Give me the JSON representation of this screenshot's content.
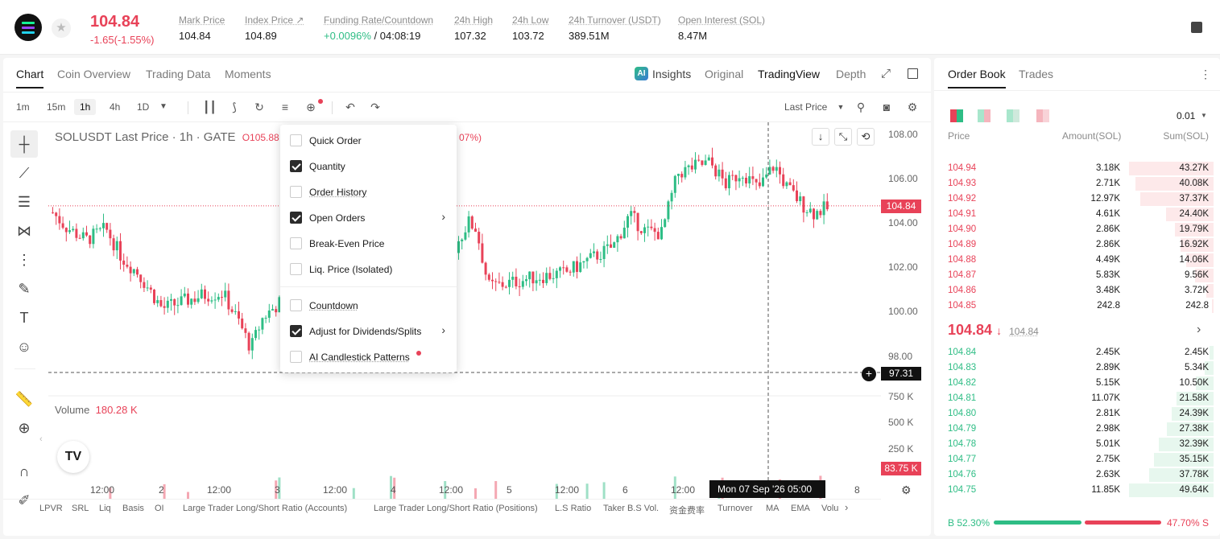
{
  "ticker": {
    "last_price": "104.84",
    "change": "-1.65(-1.55%)",
    "stats": [
      {
        "label": "Mark Price",
        "value": "104.84"
      },
      {
        "label": "Index Price ↗",
        "value": "104.89"
      },
      {
        "label": "Funding Rate/Countdown",
        "value_up": "+0.0096%",
        "value": "/ 04:08:19"
      },
      {
        "label": "24h High",
        "value": "107.32"
      },
      {
        "label": "24h Low",
        "value": "103.72"
      },
      {
        "label": "24h Turnover (USDT)",
        "value": "389.51M"
      },
      {
        "label": "Open Interest (SOL)",
        "value": "8.47M"
      }
    ]
  },
  "chart_tabs": [
    "Chart",
    "Coin Overview",
    "Trading Data",
    "Moments"
  ],
  "view_tabs": {
    "insights": "Insights",
    "original": "Original",
    "tradingview": "TradingView",
    "depth": "Depth"
  },
  "timeframes": [
    "1m",
    "15m",
    "1h",
    "4h",
    "1D"
  ],
  "price_type": "Last Price",
  "legend": {
    "symbol": "SOLUSDT Last Price · 1h · GATE",
    "open": "O105.88",
    "pct": "07%)"
  },
  "y_ticks": [
    "108.00",
    "106.00",
    "104.00",
    "102.00",
    "100.00",
    "98.00"
  ],
  "vol_ticks": [
    "750 K",
    "500 K",
    "250 K"
  ],
  "price_label": "104.84",
  "cursor_price": "97.31",
  "vol_label": "83.75 K",
  "volume": {
    "label": "Volume",
    "value": "180.28 K"
  },
  "x_ticks": [
    "12:00",
    "2",
    "12:00",
    "3",
    "12:00",
    "4",
    "12:00",
    "5",
    "12:00",
    "6",
    "12:00",
    "8"
  ],
  "x_tooltip": "Mon 07 Sep '26   05:00",
  "indicators": [
    "LPVR",
    "SRL",
    "Liq",
    "Basis",
    "OI",
    "Large Trader Long/Short Ratio (Accounts)",
    "Large Trader Long/Short Ratio (Positions)",
    "L.S Ratio",
    "Taker B.S Vol.",
    "资金费率",
    "Turnover",
    "MA",
    "EMA",
    "Volu"
  ],
  "menu": [
    {
      "label": "Quick Order",
      "checked": false
    },
    {
      "label": "Quantity",
      "checked": true
    },
    {
      "label": "Order History",
      "checked": false
    },
    {
      "label": "Open Orders",
      "checked": true
    },
    {
      "label": "Break-Even Price",
      "checked": false
    },
    {
      "label": "Liq. Price (Isolated)",
      "checked": false
    },
    {
      "label": "Countdown",
      "checked": false
    },
    {
      "label": "Adjust for Dividends/Splits",
      "checked": true
    },
    {
      "label": "AI Candlestick Patterns",
      "checked": false
    }
  ],
  "orderbook": {
    "tabs": [
      "Order Book",
      "Trades"
    ],
    "precision": "0.01",
    "headers": {
      "price": "Price",
      "amount": "Amount(SOL)",
      "sum": "Sum(SOL)"
    },
    "asks": [
      {
        "price": "104.94",
        "amount": "3.18K",
        "sum": "43.27K",
        "depth": 1.0
      },
      {
        "price": "104.93",
        "amount": "2.71K",
        "sum": "40.08K",
        "depth": 0.926
      },
      {
        "price": "104.92",
        "amount": "12.97K",
        "sum": "37.37K",
        "depth": 0.864
      },
      {
        "price": "104.91",
        "amount": "4.61K",
        "sum": "24.40K",
        "depth": 0.564
      },
      {
        "price": "104.90",
        "amount": "2.86K",
        "sum": "19.79K",
        "depth": 0.457
      },
      {
        "price": "104.89",
        "amount": "2.86K",
        "sum": "16.92K",
        "depth": 0.391
      },
      {
        "price": "104.88",
        "amount": "4.49K",
        "sum": "14.06K",
        "depth": 0.325
      },
      {
        "price": "104.87",
        "amount": "5.83K",
        "sum": "9.56K",
        "depth": 0.221
      },
      {
        "price": "104.86",
        "amount": "3.48K",
        "sum": "3.72K",
        "depth": 0.086
      },
      {
        "price": "104.85",
        "amount": "242.8",
        "sum": "242.8",
        "depth": 0.006
      }
    ],
    "mid_price": "104.84",
    "mid_mark": "104.84",
    "bids": [
      {
        "price": "104.84",
        "amount": "2.45K",
        "sum": "2.45K",
        "depth": 0.049
      },
      {
        "price": "104.83",
        "amount": "2.89K",
        "sum": "5.34K",
        "depth": 0.108
      },
      {
        "price": "104.82",
        "amount": "5.15K",
        "sum": "10.50K",
        "depth": 0.211
      },
      {
        "price": "104.81",
        "amount": "11.07K",
        "sum": "21.58K",
        "depth": 0.434
      },
      {
        "price": "104.80",
        "amount": "2.81K",
        "sum": "24.39K",
        "depth": 0.491
      },
      {
        "price": "104.79",
        "amount": "2.98K",
        "sum": "27.38K",
        "depth": 0.551
      },
      {
        "price": "104.78",
        "amount": "5.01K",
        "sum": "32.39K",
        "depth": 0.652
      },
      {
        "price": "104.77",
        "amount": "2.75K",
        "sum": "35.15K",
        "depth": 0.707
      },
      {
        "price": "104.76",
        "amount": "2.63K",
        "sum": "37.78K",
        "depth": 0.76
      },
      {
        "price": "104.75",
        "amount": "11.85K",
        "sum": "49.64K",
        "depth": 1.0
      }
    ],
    "buy_ratio": "B 52.30%",
    "sell_ratio": "47.70% S",
    "buy_fraction": 0.523
  },
  "colors": {
    "up": "#2ebd85",
    "down": "#e84258",
    "accent": "#1a1a1a"
  }
}
